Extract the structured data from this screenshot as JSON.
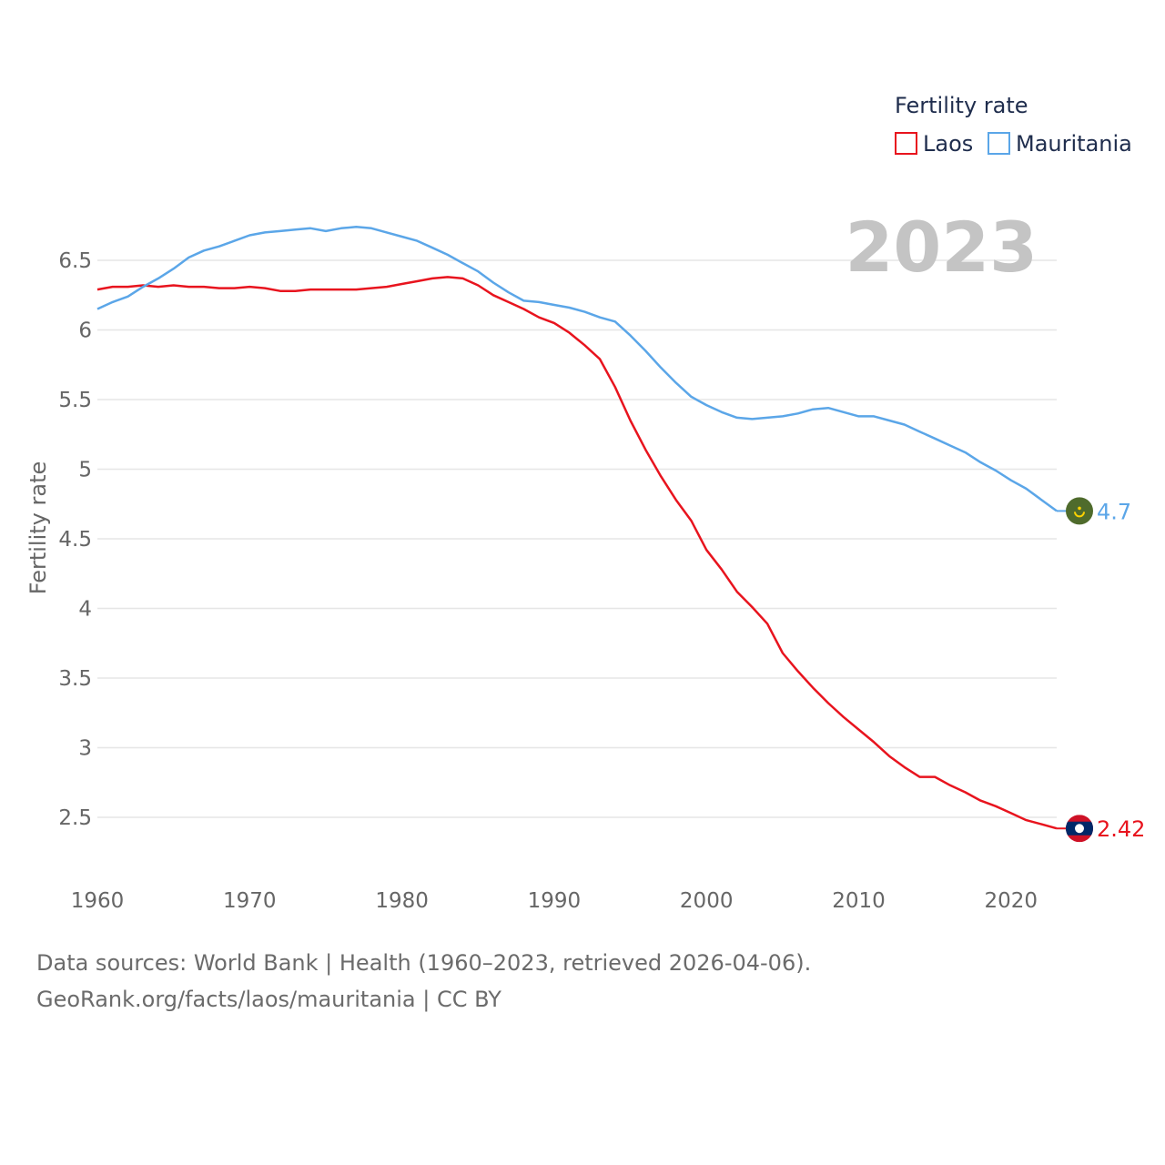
{
  "chart_data": {
    "type": "line",
    "legend_title": "Fertility rate",
    "year_label": "2023",
    "ylabel": "Fertility rate",
    "xlabel": "",
    "xlim": [
      1960,
      2023
    ],
    "ylim": [
      2.0,
      7.0
    ],
    "x_ticks": [
      1960,
      1970,
      1980,
      1990,
      2000,
      2010,
      2020
    ],
    "y_ticks": [
      {
        "value": 2.5,
        "label": "2.5"
      },
      {
        "value": 3,
        "label": "3"
      },
      {
        "value": 3.5,
        "label": "3.5"
      },
      {
        "value": 4,
        "label": "4"
      },
      {
        "value": 4.5,
        "label": "4.5"
      },
      {
        "value": 5,
        "label": "5"
      },
      {
        "value": 5.5,
        "label": "5.5"
      },
      {
        "value": 6,
        "label": "6"
      },
      {
        "value": 6.5,
        "label": "6.5"
      }
    ],
    "x": [
      1960,
      1961,
      1962,
      1963,
      1964,
      1965,
      1966,
      1967,
      1968,
      1969,
      1970,
      1971,
      1972,
      1973,
      1974,
      1975,
      1976,
      1977,
      1978,
      1979,
      1980,
      1981,
      1982,
      1983,
      1984,
      1985,
      1986,
      1987,
      1988,
      1989,
      1990,
      1991,
      1992,
      1993,
      1994,
      1995,
      1996,
      1997,
      1998,
      1999,
      2000,
      2001,
      2002,
      2003,
      2004,
      2005,
      2006,
      2007,
      2008,
      2009,
      2010,
      2011,
      2012,
      2013,
      2014,
      2015,
      2016,
      2017,
      2018,
      2019,
      2020,
      2021,
      2022,
      2023
    ],
    "series": [
      {
        "name": "Laos",
        "color": "#e8141e",
        "end_label": "2.42",
        "flag": "laos-flag-icon",
        "values": [
          6.29,
          6.31,
          6.31,
          6.32,
          6.31,
          6.32,
          6.31,
          6.31,
          6.3,
          6.3,
          6.31,
          6.3,
          6.28,
          6.28,
          6.29,
          6.29,
          6.29,
          6.29,
          6.3,
          6.31,
          6.33,
          6.35,
          6.37,
          6.38,
          6.37,
          6.32,
          6.25,
          6.2,
          6.15,
          6.09,
          6.05,
          5.98,
          5.89,
          5.79,
          5.59,
          5.35,
          5.14,
          4.95,
          4.78,
          4.63,
          4.42,
          4.28,
          4.12,
          4.01,
          3.89,
          3.68,
          3.55,
          3.43,
          3.32,
          3.22,
          3.13,
          3.04,
          2.94,
          2.86,
          2.79,
          2.79,
          2.73,
          2.68,
          2.62,
          2.58,
          2.53,
          2.48,
          2.45,
          2.42
        ]
      },
      {
        "name": "Mauritania",
        "color": "#5ba6e8",
        "end_label": "4.7",
        "flag": "mauritania-flag-icon",
        "values": [
          6.15,
          6.2,
          6.24,
          6.31,
          6.37,
          6.44,
          6.52,
          6.57,
          6.6,
          6.64,
          6.68,
          6.7,
          6.71,
          6.72,
          6.73,
          6.71,
          6.73,
          6.74,
          6.73,
          6.7,
          6.67,
          6.64,
          6.59,
          6.54,
          6.48,
          6.42,
          6.34,
          6.27,
          6.21,
          6.2,
          6.18,
          6.16,
          6.13,
          6.09,
          6.06,
          5.96,
          5.85,
          5.73,
          5.62,
          5.52,
          5.46,
          5.41,
          5.37,
          5.36,
          5.37,
          5.38,
          5.4,
          5.43,
          5.44,
          5.41,
          5.38,
          5.38,
          5.35,
          5.32,
          5.27,
          5.22,
          5.17,
          5.12,
          5.05,
          4.99,
          4.92,
          4.86,
          4.78,
          4.7
        ]
      }
    ]
  },
  "footer": {
    "source_line": "Data sources: World Bank | Health (1960–2023, retrieved 2026-04-06).",
    "credit_line": "GeoRank.org/facts/laos/mauritania | CC BY"
  }
}
